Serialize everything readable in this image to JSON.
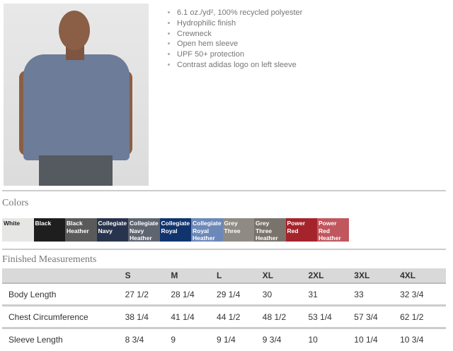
{
  "features": [
    "6.1 oz./yd², 100% recycled polyester",
    "Hydrophilic finish",
    "Crewneck",
    "Open hem sleeve",
    "UPF 50+ protection",
    "Contrast adidas logo on left sleeve"
  ],
  "colors_heading": "Colors",
  "colors": [
    {
      "name": "White",
      "hex": "#e6e6e4",
      "text": "#222"
    },
    {
      "name": "Black",
      "hex": "#1f1e1f",
      "text": "#fff"
    },
    {
      "name": "Black Heather",
      "hex": "#5a5a5a",
      "text": "#fff"
    },
    {
      "name": "Collegiate Navy",
      "hex": "#28344d",
      "text": "#fff"
    },
    {
      "name": "Collegiate Navy Heather",
      "hex": "#5e6470",
      "text": "#fff"
    },
    {
      "name": "Collegiate Royal",
      "hex": "#12346e",
      "text": "#fff"
    },
    {
      "name": "Collegiate Royal Heather",
      "hex": "#6b88b8",
      "text": "#fff"
    },
    {
      "name": "Grey Three",
      "hex": "#8f8a84",
      "text": "#fff"
    },
    {
      "name": "Grey Three Heather",
      "hex": "#7a736c",
      "text": "#fff"
    },
    {
      "name": "Power Red",
      "hex": "#a5232b",
      "text": "#fff"
    },
    {
      "name": "Power Red Heather",
      "hex": "#c0575e",
      "text": "#fff"
    }
  ],
  "measurements_heading": "Finished Measurements",
  "sizes": [
    "S",
    "M",
    "L",
    "XL",
    "2XL",
    "3XL",
    "4XL"
  ],
  "rows": [
    {
      "label": "Body Length",
      "values": [
        "27 1/2",
        "28 1/4",
        "29 1/4",
        "30",
        "31",
        "33",
        "32 3/4"
      ]
    },
    {
      "label": "Chest Circumference",
      "values": [
        "38 1/4",
        "41 1/4",
        "44 1/2",
        "48 1/2",
        "53 1/4",
        "57 3/4",
        "62 1/2"
      ]
    },
    {
      "label": "Sleeve Length",
      "values": [
        "8 3/4",
        "9",
        "9 1/4",
        "9 3/4",
        "10",
        "10 1/4",
        "10 3/4"
      ]
    }
  ]
}
